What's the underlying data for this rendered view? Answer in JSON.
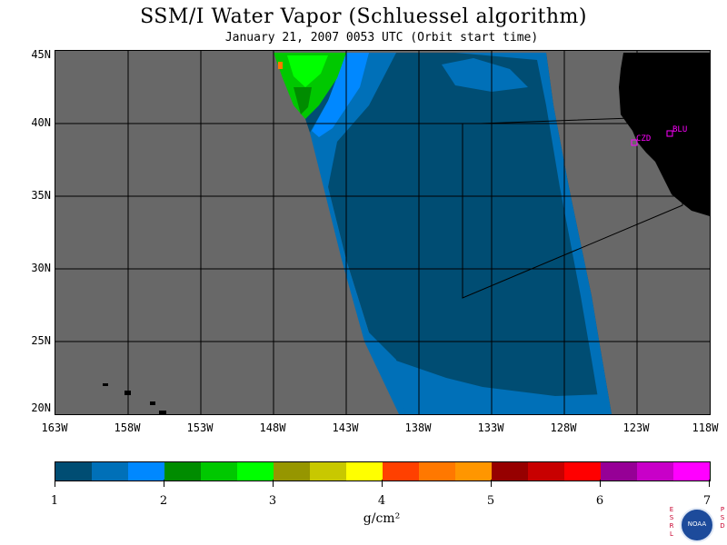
{
  "title": "SSM/I Water Vapor (Schluessel algorithm)",
  "subtitle": "January 21, 2007  0053 UTC  (Orbit start time)",
  "map": {
    "lat_labels": [
      "45N",
      "40N",
      "35N",
      "30N",
      "25N",
      "20N"
    ],
    "lon_labels": [
      "163W",
      "158W",
      "153W",
      "148W",
      "143W",
      "138W",
      "133W",
      "128W",
      "123W",
      "118W"
    ],
    "stations": [
      {
        "id": "CZD",
        "color": "#ff00ff"
      },
      {
        "id": "BLU",
        "color": "#ff00ff"
      }
    ],
    "colors": {
      "no_data": "#686868",
      "land": "#000000",
      "gridline": "#000000",
      "station_marker": "#ff00ff"
    }
  },
  "colorbar": {
    "labels": [
      "1",
      "2",
      "3",
      "4",
      "5",
      "6",
      "7"
    ],
    "units": "g/cm²",
    "colors": [
      "#004d73",
      "#0070b8",
      "#0088ff",
      "#008c00",
      "#00c800",
      "#00ff00",
      "#969600",
      "#c8c800",
      "#ffff00",
      "#ff4000",
      "#ff7800",
      "#ff9600",
      "#960000",
      "#c80000",
      "#ff0000",
      "#960096",
      "#c800c8",
      "#ff00ff"
    ]
  },
  "logo": {
    "left_letters": "ESRL",
    "right_letters": "PSD",
    "name": "NOAA",
    "icon": "noaa-logo-icon"
  }
}
